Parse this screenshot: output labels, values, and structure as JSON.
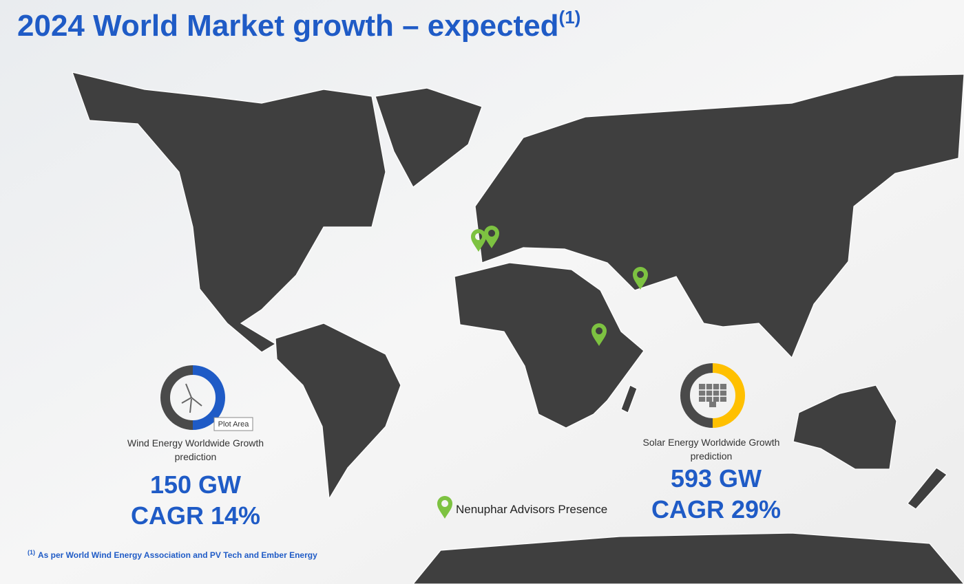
{
  "header": {
    "title": "2024 World Market growth – expected",
    "title_note": "(1)"
  },
  "wind": {
    "label": "Wind Energy Worldwide Growth prediction",
    "capacity": "150 GW",
    "cagr": "CAGR 14%",
    "donut": {
      "type": "donut",
      "values": [
        50,
        50
      ],
      "colors": [
        "#1f5bc6",
        "#4a4a4a"
      ]
    }
  },
  "tooltip": "Plot Area",
  "solar": {
    "label": "Solar Energy Worldwide Growth prediction",
    "capacity": "593 GW",
    "cagr": "CAGR 29%",
    "donut": {
      "type": "donut",
      "values": [
        50,
        50
      ],
      "colors": [
        "#ffc000",
        "#4a4a4a"
      ]
    }
  },
  "legend": "Nenuphar Advisors Presence",
  "footnote": {
    "note": "(1)",
    "text": "As per World Wind Energy Association and PV Tech and Ember Energy"
  }
}
